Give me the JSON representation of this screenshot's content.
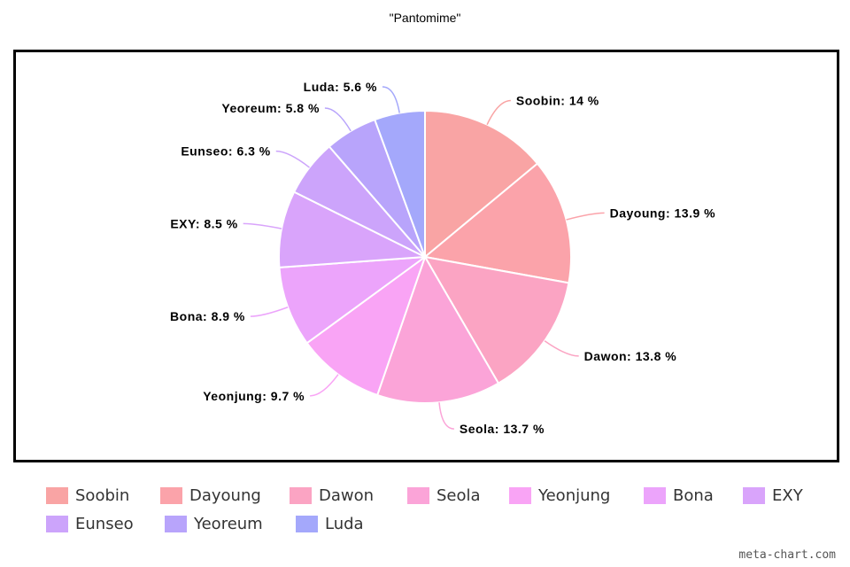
{
  "chart_data": {
    "type": "pie",
    "title": "\"Pantomime\"",
    "categories": [
      "Soobin",
      "Dayoung",
      "Dawon",
      "Seola",
      "Yeonjung",
      "Bona",
      "EXY",
      "Eunseo",
      "Yeoreum",
      "Luda"
    ],
    "values": [
      14,
      13.9,
      13.8,
      13.7,
      9.7,
      8.9,
      8.5,
      6.3,
      5.8,
      5.6
    ],
    "labels": [
      "Soobin: 14 %",
      "Dayoung: 13.9 %",
      "Dawon: 13.8 %",
      "Seola: 13.7 %",
      "Yeonjung: 9.7 %",
      "Bona: 8.9 %",
      "EXY: 8.5 %",
      "Eunseo: 6.3 %",
      "Yeoreum: 5.8 %",
      "Luda: 5.6 %"
    ],
    "colors": [
      "#f9a4a4",
      "#fba3aa",
      "#fba4c3",
      "#fba4d8",
      "#f9a4f5",
      "#eca4fb",
      "#d9a4fb",
      "#cca4fb",
      "#b8a4fb",
      "#a4a8fb"
    ],
    "legend_position": "bottom"
  },
  "watermark": "meta-chart.com"
}
